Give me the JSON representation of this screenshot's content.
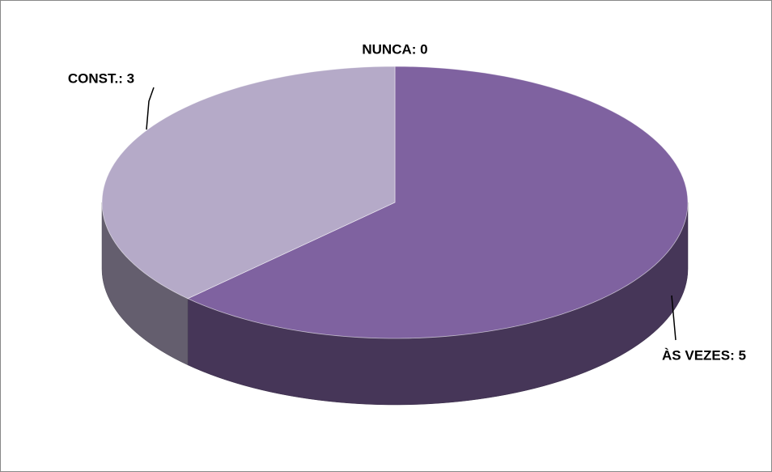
{
  "chart_data": {
    "type": "pie",
    "values": [
      0,
      5,
      3
    ],
    "value_labels": [
      "NUNCA: 0",
      "ÀS VEZES: 5",
      "CONST.: 3"
    ],
    "colors": [
      "#4f3b6b",
      "#7f62a0",
      "#b5aac8"
    ]
  }
}
